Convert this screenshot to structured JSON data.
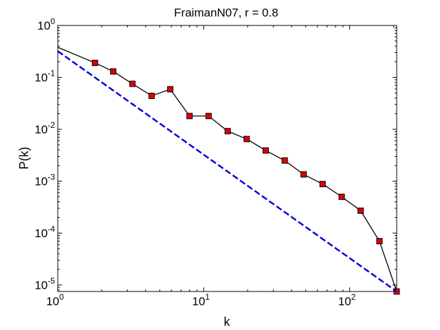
{
  "chart_data": {
    "type": "line",
    "title": "FraimanN07, r = 0.8",
    "xlabel": "k",
    "ylabel": "P(k)",
    "xscale": "log",
    "yscale": "log",
    "xlim": [
      1,
      210
    ],
    "ylim": [
      7.5e-06,
      1
    ],
    "x_ticks": [
      {
        "value": 1,
        "base": "10",
        "exp": "0"
      },
      {
        "value": 10,
        "base": "10",
        "exp": "1"
      },
      {
        "value": 100,
        "base": "10",
        "exp": "2"
      }
    ],
    "y_ticks": [
      {
        "value": 1,
        "base": "10",
        "exp": "0"
      },
      {
        "value": 0.1,
        "base": "10",
        "exp": "-1"
      },
      {
        "value": 0.01,
        "base": "10",
        "exp": "-2"
      },
      {
        "value": 0.001,
        "base": "10",
        "exp": "-3"
      },
      {
        "value": 0.0001,
        "base": "10",
        "exp": "-4"
      },
      {
        "value": 1e-05,
        "base": "10",
        "exp": "-5"
      }
    ],
    "grid": false,
    "series": [
      {
        "color": "#000000",
        "marker_color": "#dd0000",
        "line_style": "solid",
        "marker": "square",
        "x": [
          1,
          1.8,
          2.4,
          3.25,
          4.4,
          5.9,
          8.0,
          10.8,
          14.6,
          19.7,
          26.6,
          35.9,
          48.4,
          65.3,
          88.2,
          119,
          160,
          210
        ],
        "y": [
          0.38,
          0.19,
          0.13,
          0.075,
          0.044,
          0.059,
          0.018,
          0.018,
          0.0092,
          0.0065,
          0.0039,
          0.0025,
          0.00135,
          0.00088,
          0.0005,
          0.00027,
          7e-05,
          7.5e-06
        ],
        "markers_from_index": 1
      },
      {
        "color": "#0000dd",
        "line_style": "dashed",
        "marker": "none",
        "x": [
          1,
          210
        ],
        "y": [
          0.32,
          7.5e-06
        ]
      }
    ]
  }
}
